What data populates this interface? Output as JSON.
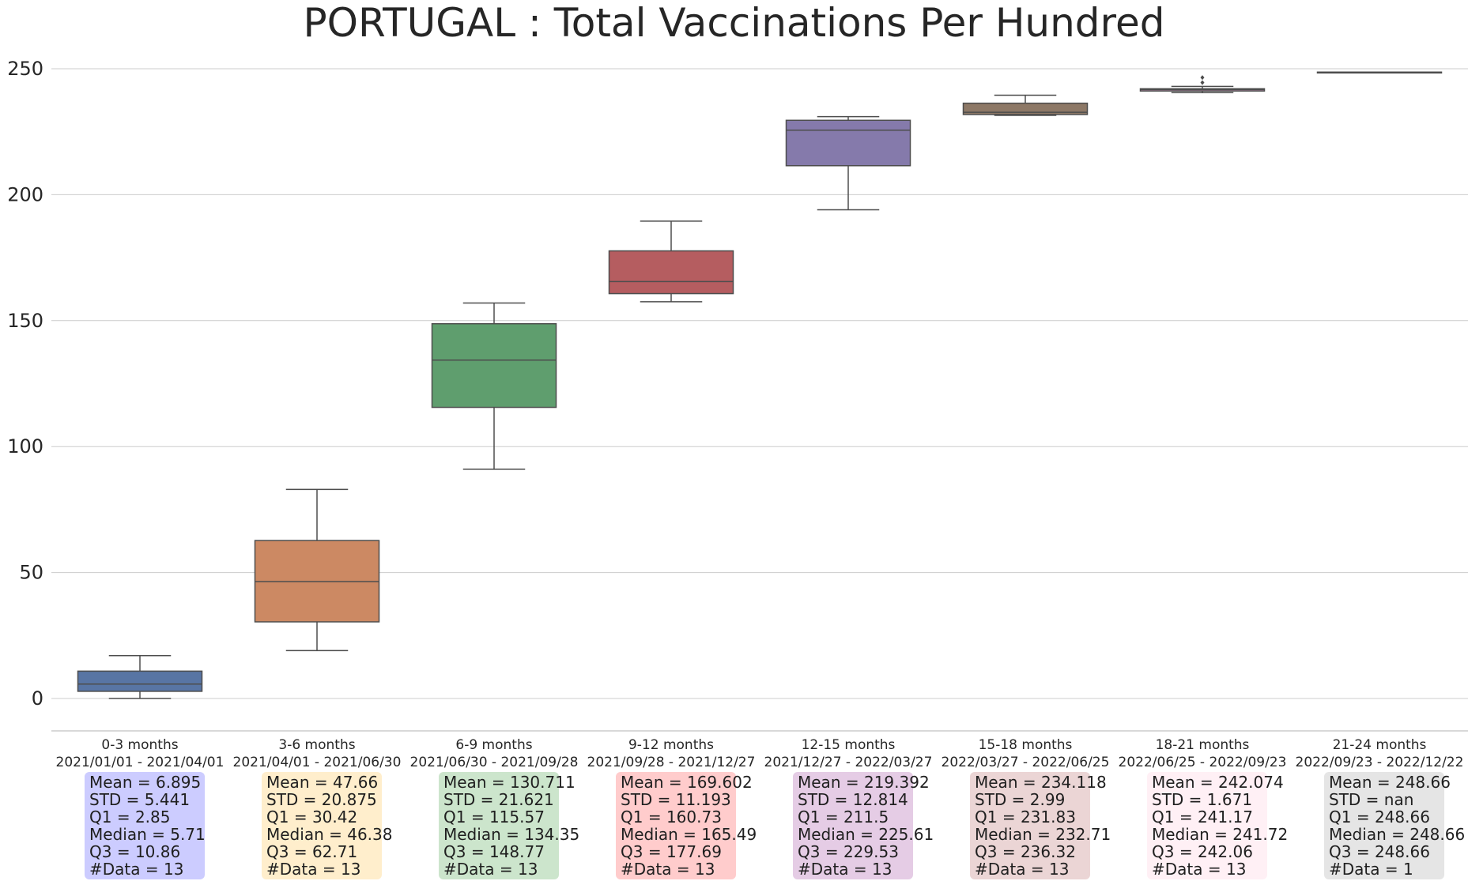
{
  "chart_data": {
    "type": "box",
    "title": "PORTUGAL : Total Vaccinations Per Hundred",
    "xlabel": "",
    "ylabel": "",
    "ylim": [
      -12,
      263
    ],
    "yticks": [
      0,
      50,
      100,
      150,
      200,
      250
    ],
    "grid": "horizontal",
    "groups": [
      {
        "label": "0-3 months",
        "range": "2021/01/01 - 2021/04/01",
        "color": "#5875a4",
        "box_bg": "#ccccff",
        "whisker_low": 0.0,
        "q1": 2.85,
        "median": 5.71,
        "q3": 10.86,
        "whisker_high": 17.0,
        "outliers": [],
        "stats": {
          "mean": "Mean = 6.895",
          "std": "STD = 5.441",
          "q1": "Q1 = 2.85",
          "median": "Median = 5.71",
          "q3": "Q3 = 10.86",
          "n": "#Data = 13"
        }
      },
      {
        "label": "3-6 months",
        "range": "2021/04/01 - 2021/06/30",
        "color": "#cc8963",
        "box_bg": "#ffeecc",
        "whisker_low": 19.0,
        "q1": 30.42,
        "median": 46.38,
        "q3": 62.71,
        "whisker_high": 83.0,
        "outliers": [],
        "stats": {
          "mean": "Mean = 47.66",
          "std": "STD = 20.875",
          "q1": "Q1 = 30.42",
          "median": "Median = 46.38",
          "q3": "Q3 = 62.71",
          "n": "#Data = 13"
        }
      },
      {
        "label": "6-9 months",
        "range": "2021/06/30 - 2021/09/28",
        "color": "#5f9e6e",
        "box_bg": "#cce5cc",
        "whisker_low": 91.0,
        "q1": 115.57,
        "median": 134.35,
        "q3": 148.77,
        "whisker_high": 157.0,
        "outliers": [],
        "stats": {
          "mean": "Mean = 130.711",
          "std": "STD = 21.621",
          "q1": "Q1 = 115.57",
          "median": "Median = 134.35",
          "q3": "Q3 = 148.77",
          "n": "#Data = 13"
        }
      },
      {
        "label": "9-12 months",
        "range": "2021/09/28 - 2021/12/27",
        "color": "#b55d60",
        "box_bg": "#ffcccc",
        "whisker_low": 157.5,
        "q1": 160.73,
        "median": 165.49,
        "q3": 177.69,
        "whisker_high": 189.5,
        "outliers": [],
        "stats": {
          "mean": "Mean = 169.602",
          "std": "STD = 11.193",
          "q1": "Q1 = 160.73",
          "median": "Median = 165.49",
          "q3": "Q3 = 177.69",
          "n": "#Data = 13"
        }
      },
      {
        "label": "12-15 months",
        "range": "2021/12/27 - 2022/03/27",
        "color": "#857aab",
        "box_bg": "#e5cce5",
        "whisker_low": 194.0,
        "q1": 211.5,
        "median": 225.61,
        "q3": 229.53,
        "whisker_high": 231.0,
        "outliers": [],
        "stats": {
          "mean": "Mean = 219.392",
          "std": "STD = 12.814",
          "q1": "Q1 = 211.5",
          "median": "Median = 225.61",
          "q3": "Q3 = 229.53",
          "n": "#Data = 13"
        }
      },
      {
        "label": "15-18 months",
        "range": "2022/03/27 - 2022/06/25",
        "color": "#8d7866",
        "box_bg": "#ebd5d5",
        "whisker_low": 231.5,
        "q1": 231.83,
        "median": 232.71,
        "q3": 236.32,
        "whisker_high": 239.5,
        "outliers": [],
        "stats": {
          "mean": "Mean = 234.118",
          "std": "STD = 2.99",
          "q1": "Q1 = 231.83",
          "median": "Median = 232.71",
          "q3": "Q3 = 236.32",
          "n": "#Data = 13"
        }
      },
      {
        "label": "18-21 months",
        "range": "2022/06/25 - 2022/09/23",
        "color": "#d095bf",
        "box_bg": "#fff0f5",
        "whisker_low": 240.5,
        "q1": 241.17,
        "median": 241.72,
        "q3": 242.06,
        "whisker_high": 243.0,
        "outliers": [
          244.5,
          246.5
        ],
        "stats": {
          "mean": "Mean = 242.074",
          "std": "STD = 1.671",
          "q1": "Q1 = 241.17",
          "median": "Median = 241.72",
          "q3": "Q3 = 242.06",
          "n": "#Data = 13"
        }
      },
      {
        "label": "21-24 months",
        "range": "2022/09/23 - 2022/12/22",
        "color": "#797979",
        "box_bg": "#e5e5e5",
        "whisker_low": 248.66,
        "q1": 248.66,
        "median": 248.66,
        "q3": 248.66,
        "whisker_high": 248.66,
        "outliers": [],
        "stats": {
          "mean": "Mean = 248.66",
          "std": "STD = nan",
          "q1": "Q1 = 248.66",
          "median": "Median = 248.66",
          "q3": "Q3 = 248.66",
          "n": "#Data = 1"
        }
      }
    ]
  }
}
